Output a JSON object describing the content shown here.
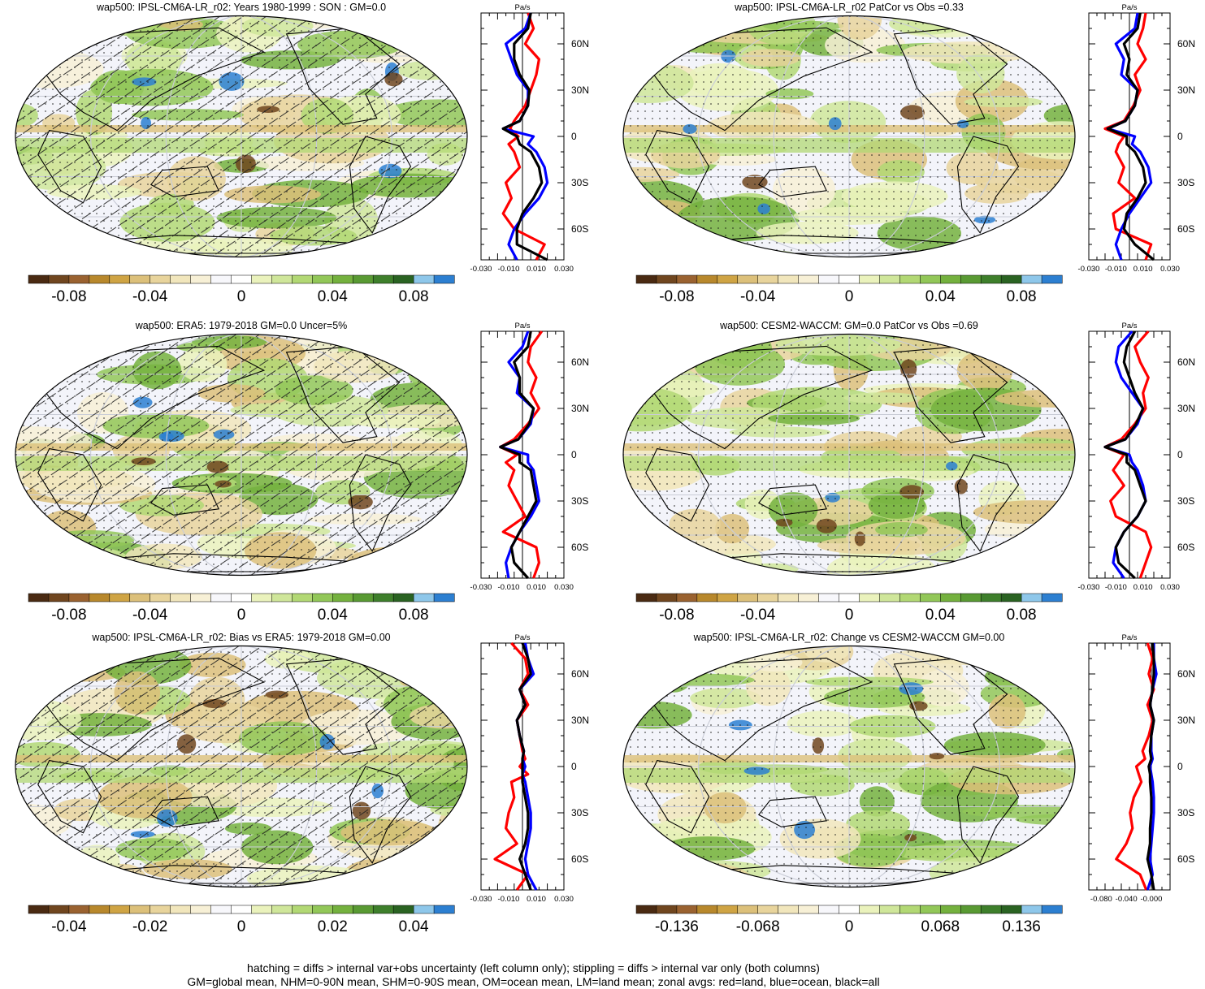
{
  "chart_data": [
    {
      "type": "heatmap",
      "title": "wap500: IPSL-CM6A-LR_r02: Years 1980-1999 : SON : GM=0.0",
      "colorbar_ticks": [
        "-0.08",
        "-0.04",
        "0",
        "0.04",
        "0.08"
      ],
      "hatching": true,
      "zonal": {
        "unit": "Pa/s",
        "xticks": [
          "-0.030",
          "-0.010",
          "0.010",
          "0.030"
        ],
        "xlim": [
          -0.03,
          0.03
        ],
        "yticks": [
          "60N",
          "30N",
          "0",
          "30S",
          "60S"
        ],
        "lat_knots": [
          80,
          70,
          60,
          50,
          40,
          30,
          20,
          10,
          5,
          0,
          -5,
          -10,
          -20,
          -30,
          -40,
          -50,
          -60,
          -70,
          -80
        ],
        "series": [
          {
            "name": "land",
            "color": "#ff0000",
            "values": [
              0.004,
              0.008,
              0.002,
              0.012,
              0.01,
              0.006,
              0.002,
              -0.006,
              -0.009,
              -0.003,
              -0.01,
              -0.006,
              -0.002,
              -0.012,
              -0.008,
              -0.014,
              -0.006,
              0.016,
              0.01
            ]
          },
          {
            "name": "ocean",
            "color": "#0000ff",
            "values": [
              0.006,
              0.002,
              -0.012,
              -0.008,
              -0.004,
              0.004,
              0.004,
              -0.002,
              -0.014,
              0.008,
              0.004,
              0.01,
              0.016,
              0.018,
              0.012,
              0.002,
              -0.006,
              -0.01,
              -0.004
            ]
          },
          {
            "name": "all",
            "color": "#000000",
            "values": [
              0.006,
              0.004,
              -0.006,
              -0.006,
              -0.002,
              0.005,
              0.004,
              -0.002,
              -0.014,
              -0.004,
              -0.002,
              0.006,
              0.012,
              0.014,
              0.008,
              0.0,
              -0.004,
              -0.004,
              0.018
            ]
          }
        ]
      }
    },
    {
      "type": "heatmap",
      "title": "wap500: IPSL-CM6A-LR_r02 PatCor vs Obs =0.33",
      "colorbar_ticks": [
        "-0.08",
        "-0.04",
        "0",
        "0.04",
        "0.08"
      ],
      "hatching": false,
      "zonal": {
        "unit": "Pa/s",
        "xticks": [
          "-0.030",
          "-0.010",
          "0.010",
          "0.030"
        ],
        "xlim": [
          -0.03,
          0.03
        ],
        "yticks": [
          "60N",
          "30N",
          "0",
          "30S",
          "60S"
        ],
        "lat_knots": [
          80,
          70,
          60,
          50,
          40,
          30,
          20,
          10,
          5,
          0,
          -5,
          -10,
          -20,
          -30,
          -40,
          -50,
          -60,
          -70,
          -80
        ],
        "series": [
          {
            "name": "land",
            "color": "#ff0000",
            "values": [
              0.012,
              0.01,
              0.006,
              0.012,
              0.004,
              0.008,
              0.003,
              -0.004,
              -0.018,
              -0.004,
              -0.008,
              -0.01,
              -0.004,
              -0.008,
              0.004,
              -0.012,
              -0.01,
              0.016,
              0.012
            ]
          },
          {
            "name": "ocean",
            "color": "#0000ff",
            "values": [
              0.006,
              0.004,
              -0.01,
              -0.004,
              -0.006,
              0.006,
              0.004,
              -0.003,
              -0.016,
              0.004,
              0.002,
              0.008,
              0.014,
              0.016,
              0.008,
              0.0,
              -0.006,
              -0.01,
              -0.006
            ]
          },
          {
            "name": "all",
            "color": "#000000",
            "values": [
              0.008,
              0.006,
              -0.004,
              0.0,
              -0.002,
              0.006,
              0.004,
              -0.003,
              -0.016,
              -0.002,
              -0.002,
              0.004,
              0.01,
              0.012,
              0.006,
              -0.002,
              -0.004,
              0.004,
              0.018
            ]
          }
        ]
      }
    },
    {
      "type": "heatmap",
      "title": "wap500: ERA5: 1979-2018 GM=0.0 Uncer=5%",
      "colorbar_ticks": [
        "-0.08",
        "-0.04",
        "0",
        "0.04",
        "0.08"
      ],
      "hatching": true,
      "zonal": {
        "unit": "Pa/s",
        "xticks": [
          "-0.030",
          "-0.010",
          "0.010",
          "0.030"
        ],
        "xlim": [
          -0.03,
          0.03
        ],
        "yticks": [
          "60N",
          "30N",
          "0",
          "30S",
          "60S"
        ],
        "lat_knots": [
          80,
          70,
          60,
          50,
          40,
          30,
          20,
          10,
          5,
          0,
          -5,
          -10,
          -20,
          -30,
          -40,
          -50,
          -60,
          -70,
          -80
        ],
        "series": [
          {
            "name": "land",
            "color": "#ff0000",
            "values": [
              0.014,
              0.006,
              0.004,
              0.01,
              0.006,
              0.012,
              0.004,
              -0.006,
              -0.016,
              -0.004,
              -0.012,
              -0.006,
              -0.01,
              -0.004,
              0.002,
              -0.014,
              0.01,
              0.012,
              0.008
            ]
          },
          {
            "name": "ocean",
            "color": "#0000ff",
            "values": [
              0.004,
              0.0,
              -0.01,
              -0.002,
              -0.004,
              0.008,
              0.006,
              -0.003,
              -0.016,
              0.004,
              0.004,
              0.008,
              0.01,
              0.012,
              0.006,
              -0.002,
              -0.008,
              -0.012,
              -0.01
            ]
          },
          {
            "name": "all",
            "color": "#000000",
            "values": [
              0.006,
              0.004,
              -0.006,
              -0.002,
              -0.002,
              0.008,
              0.005,
              -0.003,
              -0.016,
              -0.002,
              -0.002,
              0.006,
              0.008,
              0.01,
              0.004,
              -0.002,
              -0.008,
              -0.006,
              0.004
            ]
          }
        ]
      }
    },
    {
      "type": "heatmap",
      "title": "wap500: CESM2-WACCM: GM=0.0 PatCor vs Obs =0.69",
      "colorbar_ticks": [
        "-0.08",
        "-0.04",
        "0",
        "0.04",
        "0.08"
      ],
      "hatching": false,
      "zonal": {
        "unit": "Pa/s",
        "xticks": [
          "-0.030",
          "-0.010",
          "0.010",
          "0.030"
        ],
        "xlim": [
          -0.03,
          0.03
        ],
        "yticks": [
          "60N",
          "30N",
          "0",
          "30S",
          "60S"
        ],
        "lat_knots": [
          80,
          70,
          60,
          50,
          40,
          30,
          20,
          10,
          5,
          0,
          -5,
          -10,
          -20,
          -30,
          -40,
          -50,
          -60,
          -70,
          -80
        ],
        "series": [
          {
            "name": "land",
            "color": "#ff0000",
            "values": [
              0.014,
              0.004,
              0.008,
              0.014,
              0.01,
              0.012,
              0.004,
              -0.006,
              -0.018,
              -0.004,
              -0.008,
              -0.012,
              -0.004,
              -0.014,
              -0.01,
              0.012,
              0.016,
              0.012,
              0.008
            ]
          },
          {
            "name": "ocean",
            "color": "#0000ff",
            "values": [
              0.002,
              -0.008,
              -0.01,
              -0.006,
              0.002,
              0.01,
              0.006,
              -0.003,
              -0.018,
              0.0,
              0.002,
              0.006,
              0.01,
              0.012,
              0.006,
              -0.004,
              -0.01,
              -0.012,
              -0.004
            ]
          },
          {
            "name": "all",
            "color": "#000000",
            "values": [
              0.004,
              -0.002,
              -0.004,
              0.0,
              0.004,
              0.01,
              0.005,
              -0.003,
              -0.018,
              -0.002,
              -0.002,
              0.004,
              0.008,
              0.012,
              0.006,
              -0.004,
              -0.01,
              -0.008,
              0.004
            ]
          }
        ]
      }
    },
    {
      "type": "heatmap",
      "title": "wap500: IPSL-CM6A-LR_r02: Bias vs ERA5: 1979-2018  GM=0.00",
      "colorbar_ticks": [
        "-0.04",
        "-0.02",
        "0",
        "0.02",
        "0.04"
      ],
      "hatching": true,
      "zonal": {
        "unit": "Pa/s",
        "xticks": [
          "-0.030",
          "-0.010",
          "0.010",
          "0.030"
        ],
        "xlim": [
          -0.03,
          0.03
        ],
        "yticks": [
          "60N",
          "30N",
          "0",
          "30S",
          "60S"
        ],
        "lat_knots": [
          80,
          70,
          60,
          50,
          40,
          30,
          20,
          10,
          5,
          0,
          -5,
          -10,
          -20,
          -30,
          -40,
          -50,
          -60,
          -70,
          -80
        ],
        "series": [
          {
            "name": "land",
            "color": "#ff0000",
            "values": [
              -0.008,
              0.002,
              0.004,
              -0.002,
              0.004,
              -0.004,
              -0.002,
              0.0,
              0.002,
              -0.002,
              0.004,
              -0.008,
              -0.006,
              -0.01,
              -0.012,
              -0.004,
              -0.02,
              0.004,
              -0.004
            ]
          },
          {
            "name": "ocean",
            "color": "#0000ff",
            "values": [
              0.002,
              0.004,
              0.008,
              -0.002,
              0.002,
              -0.004,
              -0.002,
              0.001,
              0.0,
              0.002,
              0.0,
              0.002,
              0.004,
              0.006,
              0.006,
              0.004,
              0.002,
              0.004,
              0.01
            ]
          },
          {
            "name": "all",
            "color": "#000000",
            "values": [
              0.0,
              0.004,
              0.006,
              -0.002,
              0.002,
              -0.004,
              -0.002,
              0.001,
              0.0,
              0.0,
              0.0,
              0.0,
              0.002,
              0.004,
              0.004,
              0.002,
              -0.002,
              0.002,
              0.006
            ]
          }
        ]
      }
    },
    {
      "type": "heatmap",
      "title": "wap500: IPSL-CM6A-LR_r02: Change vs CESM2-WACCM GM=0.00",
      "colorbar_ticks": [
        "-0.136",
        "-0.068",
        "0",
        "0.068",
        "0.136"
      ],
      "hatching": false,
      "zonal": {
        "unit": "Pa/s",
        "xticks": [
          "-0.080",
          "-0.040",
          "-0.000"
        ],
        "xlim": [
          -0.1,
          0.03
        ],
        "yticks": [
          "60N",
          "30N",
          "0",
          "30S",
          "60S"
        ],
        "lat_knots": [
          80,
          70,
          60,
          50,
          40,
          30,
          20,
          10,
          5,
          0,
          -5,
          -10,
          -20,
          -30,
          -40,
          -50,
          -60,
          -70,
          -80
        ],
        "series": [
          {
            "name": "land",
            "color": "#ff0000",
            "values": [
              -0.006,
              0.002,
              -0.004,
              0.004,
              -0.006,
              0.002,
              -0.004,
              -0.014,
              -0.01,
              -0.024,
              -0.02,
              -0.016,
              -0.028,
              -0.034,
              -0.03,
              -0.04,
              -0.056,
              -0.018,
              -0.008
            ]
          },
          {
            "name": "ocean",
            "color": "#0000ff",
            "values": [
              0.004,
              0.004,
              0.008,
              0.002,
              -0.002,
              0.004,
              0.0,
              0.0,
              0.002,
              -0.002,
              0.0,
              0.002,
              0.004,
              0.004,
              0.002,
              0.0,
              -0.002,
              0.002,
              -0.006
            ]
          },
          {
            "name": "all",
            "color": "#000000",
            "values": [
              0.002,
              0.004,
              0.004,
              0.002,
              -0.002,
              0.004,
              0.0,
              -0.002,
              0.0,
              -0.004,
              -0.002,
              -0.002,
              0.0,
              0.0,
              -0.002,
              -0.002,
              -0.006,
              0.0,
              0.004
            ]
          }
        ]
      }
    }
  ],
  "colorbar_colors": [
    "#4a2a12",
    "#70461f",
    "#9a6230",
    "#b8882c",
    "#cfa444",
    "#dcc07a",
    "#e8d49c",
    "#f1e6bc",
    "#f7f0d6",
    "#f7f7fb",
    "#ffffff",
    "#eaf2bc",
    "#cfe69a",
    "#b2d874",
    "#92c758",
    "#74b13e",
    "#599a33",
    "#3e7f2b",
    "#2a6322",
    "#8ec7ea",
    "#2c7fd1"
  ],
  "footer": {
    "line1": "hatching = diffs > internal var+obs uncertainty (left column only); stippling = diffs > internal var only (both columns)",
    "line2": "GM=global mean, NHM=0-90N mean, SHM=0-90S mean, OM=ocean mean, LM=land mean; zonal avgs: red=land, blue=ocean, black=all"
  }
}
